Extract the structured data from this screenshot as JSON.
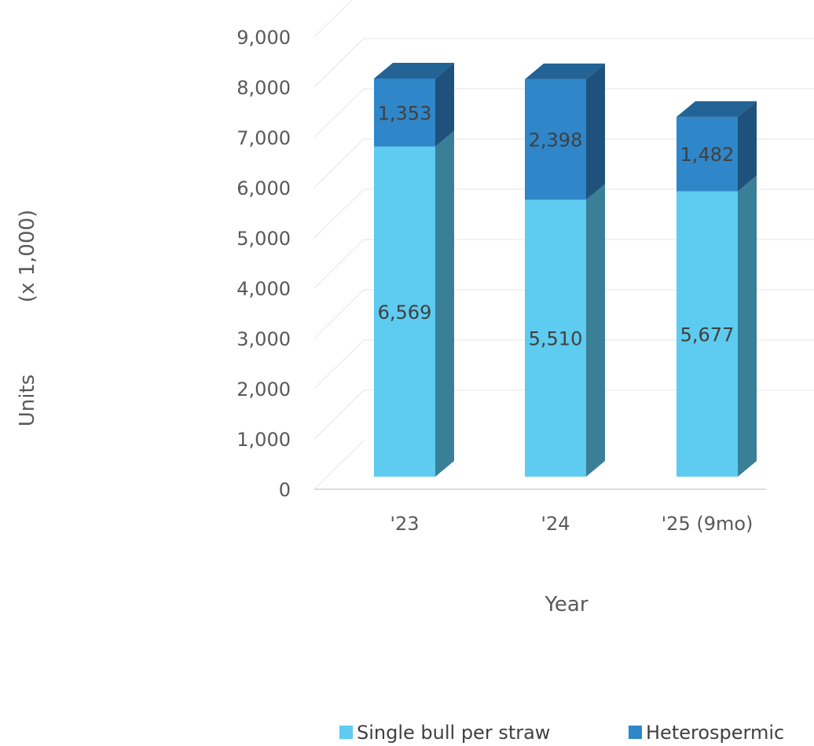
{
  "chart_data": {
    "type": "bar",
    "stacked": true,
    "style": "3d",
    "categories": [
      "'23",
      "'24",
      "'25 (9mo)"
    ],
    "series": [
      {
        "name": "Single bull per straw",
        "values": [
          6569,
          5510,
          5677
        ],
        "labels": [
          "6,569",
          "5,510",
          "5,677"
        ]
      },
      {
        "name": "Heterospermic",
        "values": [
          1353,
          2398,
          1482
        ],
        "labels": [
          "1,353",
          "2,398",
          "1,482"
        ]
      }
    ],
    "xlabel": "Year",
    "ylabel": "Units",
    "ylabel_unit": "(x 1,000)",
    "yticks": [
      "0",
      "1,000",
      "2,000",
      "3,000",
      "4,000",
      "5,000",
      "6,000",
      "7,000",
      "8,000",
      "9,000"
    ],
    "ylim": [
      0,
      9000
    ],
    "grid": true,
    "legend_position": "bottom",
    "colors": {
      "series": [
        "#5ecbf0",
        "#2f86c8"
      ],
      "series_side": [
        "#3a7f98",
        "#1e527c"
      ],
      "series_top": [
        "#2f86c8",
        "#236396"
      ],
      "grid": "#e6e6e6",
      "axis": "#d0d0d0",
      "text": "#595959"
    }
  }
}
